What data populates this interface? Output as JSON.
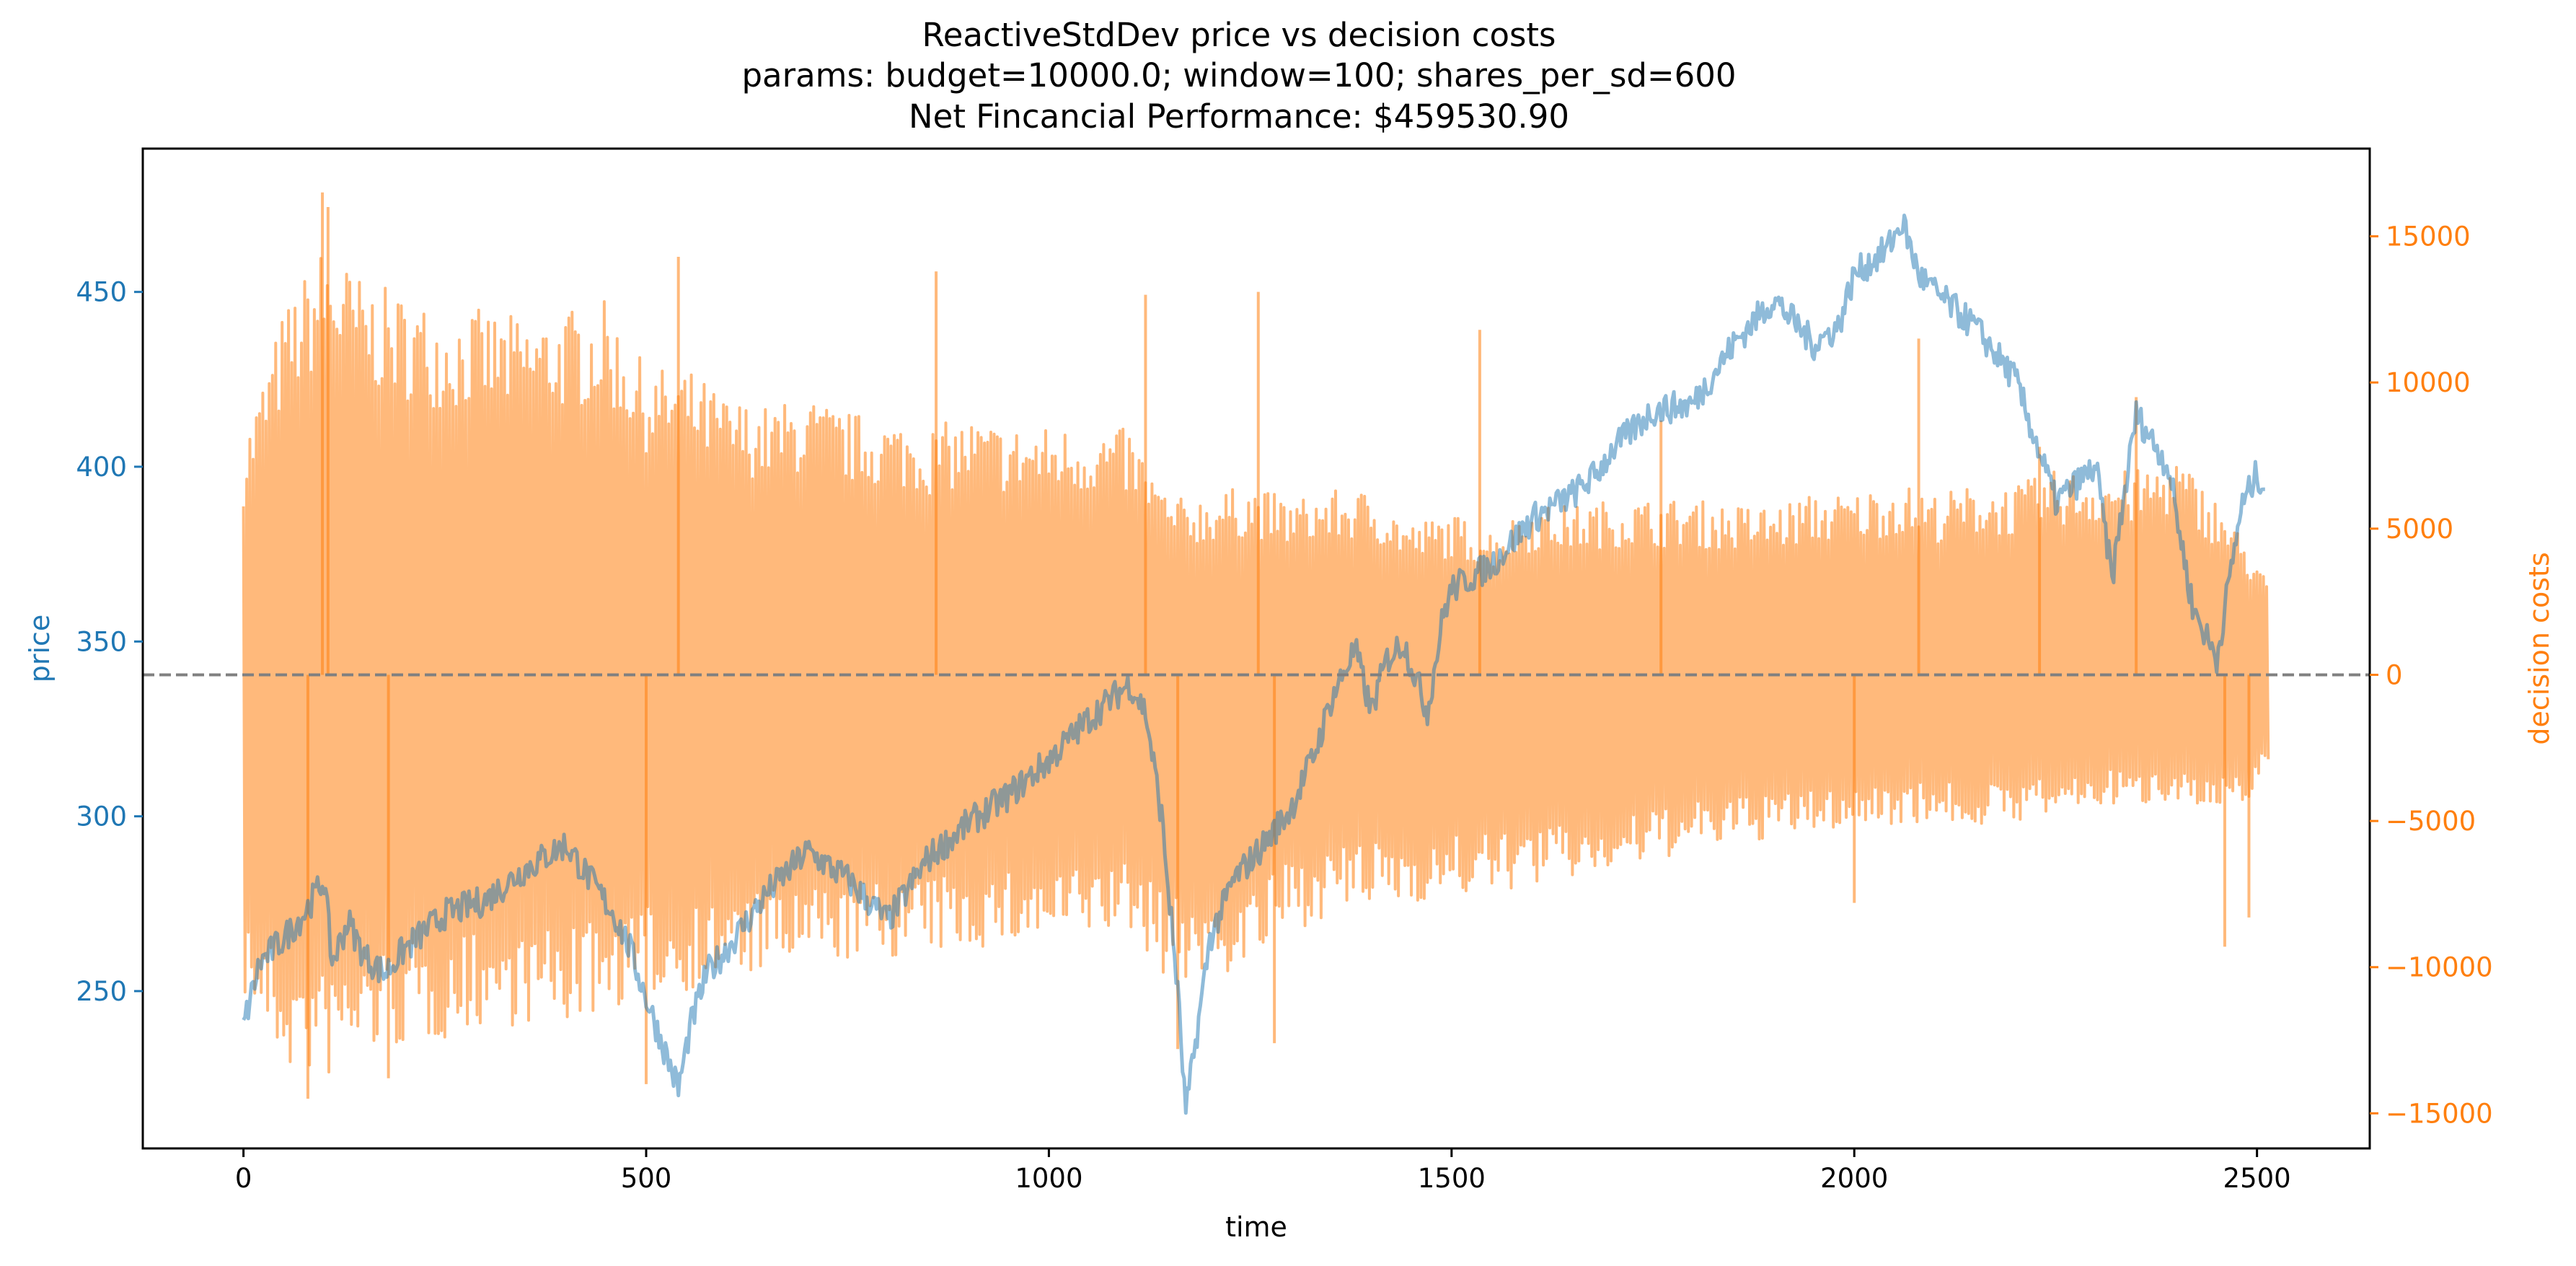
{
  "chart_data": {
    "type": "line",
    "title_lines": [
      "ReactiveStdDev price vs decision costs",
      "params: budget=10000.0; window=100; shares_per_sd=600",
      "Net Fincancial Performance: $459530.90"
    ],
    "xlabel": "time",
    "ylabel_left": "price",
    "ylabel_right": "decision costs",
    "xlim": [
      -125,
      2640
    ],
    "ylim_left": [
      205,
      491
    ],
    "ylim_right": [
      -16200,
      18000
    ],
    "x_ticks": [
      0,
      500,
      1000,
      1500,
      2000,
      2500
    ],
    "x_tick_labels": [
      "0",
      "500",
      "1000",
      "1500",
      "2000",
      "2500"
    ],
    "left_ticks": [
      250,
      300,
      350,
      400,
      450
    ],
    "left_tick_labels": [
      "250",
      "300",
      "350",
      "400",
      "450"
    ],
    "right_ticks": [
      -15000,
      -10000,
      -5000,
      0,
      5000,
      10000,
      15000
    ],
    "right_tick_labels": [
      "−15000",
      "−10000",
      "−5000",
      "0",
      "5000",
      "10000",
      "15000"
    ],
    "reference_line": {
      "axis": "right",
      "y": 0,
      "style": "dashed",
      "color": "#808080"
    },
    "colors": {
      "price": "#1f77b4",
      "decision_costs": "#ff7f0e",
      "axis": "#000000"
    },
    "series": [
      {
        "axis": "left",
        "x": [
          0,
          20,
          50,
          75,
          100,
          110,
          130,
          150,
          175,
          200,
          250,
          300,
          350,
          400,
          430,
          460,
          480,
          500,
          520,
          540,
          555,
          575,
          600,
          650,
          700,
          750,
          800,
          850,
          900,
          950,
          1000,
          1050,
          1100,
          1120,
          1140,
          1160,
          1170,
          1185,
          1200,
          1230,
          1260,
          1300,
          1330,
          1350,
          1380,
          1400,
          1420,
          1440,
          1470,
          1490,
          1500,
          1550,
          1600,
          1650,
          1680,
          1700,
          1750,
          1800,
          1850,
          1900,
          1950,
          1980,
          2000,
          2040,
          2060,
          2080,
          2100,
          2150,
          2200,
          2250,
          2300,
          2320,
          2350,
          2390,
          2420,
          2450,
          2480,
          2500,
          2510
        ],
        "values": [
          240,
          258,
          265,
          272,
          282,
          258,
          270,
          260,
          255,
          262,
          272,
          276,
          285,
          292,
          282,
          272,
          262,
          248,
          235,
          222,
          240,
          255,
          262,
          278,
          290,
          282,
          270,
          288,
          298,
          306,
          316,
          328,
          338,
          330,
          300,
          250,
          215,
          240,
          265,
          282,
          290,
          302,
          318,
          333,
          348,
          330,
          345,
          350,
          330,
          358,
          365,
          372,
          385,
          392,
          398,
          405,
          416,
          418,
          435,
          448,
          435,
          440,
          455,
          462,
          470,
          455,
          450,
          440,
          425,
          390,
          400,
          368,
          415,
          400,
          360,
          345,
          388,
          398,
          394
        ]
      },
      {
        "axis": "right",
        "x": [
          0,
          50,
          100,
          150,
          200,
          250,
          300,
          350,
          400,
          450,
          500,
          550,
          600,
          650,
          700,
          750,
          800,
          850,
          900,
          950,
          1000,
          1050,
          1100,
          1150,
          1200,
          1250,
          1300,
          1350,
          1400,
          1450,
          1500,
          1550,
          1600,
          1650,
          1700,
          1750,
          1800,
          1850,
          1900,
          1950,
          2000,
          2050,
          2100,
          2150,
          2200,
          2250,
          2300,
          2350,
          2400,
          2450,
          2500,
          2515
        ],
        "upper": [
          8000,
          12500,
          14800,
          13500,
          13000,
          12500,
          12500,
          12200,
          12500,
          12800,
          10500,
          10500,
          9500,
          9200,
          9500,
          9000,
          8800,
          8500,
          8800,
          8500,
          8500,
          8500,
          8400,
          6000,
          6200,
          6500,
          6000,
          6300,
          6300,
          5200,
          5500,
          5000,
          5800,
          5800,
          6000,
          6000,
          6000,
          5800,
          5800,
          6200,
          6200,
          6600,
          6200,
          6500,
          6500,
          7000,
          7000,
          7000,
          7500,
          6000,
          4000,
          3000
        ],
        "lower": [
          -11000,
          -13500,
          -14000,
          -13000,
          -12800,
          -12500,
          -12000,
          -12000,
          -12000,
          -11500,
          -11000,
          -10800,
          -10500,
          -10200,
          -10000,
          -9800,
          -9700,
          -9600,
          -9400,
          -9300,
          -9200,
          -9000,
          -8800,
          -10500,
          -10500,
          -10000,
          -8800,
          -8200,
          -8000,
          -7800,
          -7600,
          -7500,
          -7200,
          -7000,
          -6800,
          -6400,
          -6000,
          -5800,
          -5600,
          -5400,
          -5200,
          -5100,
          -5000,
          -5200,
          -5000,
          -4800,
          -4500,
          -4500,
          -4200,
          -5000,
          -4000,
          -3000
        ],
        "spikes": [
          {
            "x": 98,
            "y": 16500
          },
          {
            "x": 105,
            "y": 16000
          },
          {
            "x": 540,
            "y": 14300
          },
          {
            "x": 860,
            "y": 13800
          },
          {
            "x": 1120,
            "y": 13000
          },
          {
            "x": 1260,
            "y": 13100
          },
          {
            "x": 1535,
            "y": 11800
          },
          {
            "x": 2080,
            "y": 11500
          },
          {
            "x": 2230,
            "y": 7800
          },
          {
            "x": 2350,
            "y": 9500
          },
          {
            "x": 1760,
            "y": 8700
          },
          {
            "x": 80,
            "y": -14500
          },
          {
            "x": 180,
            "y": -13800
          },
          {
            "x": 500,
            "y": -14000
          },
          {
            "x": 1160,
            "y": -12800
          },
          {
            "x": 1280,
            "y": -12600
          },
          {
            "x": 2000,
            "y": -7800
          },
          {
            "x": 2460,
            "y": -9300
          },
          {
            "x": 2490,
            "y": -8300
          }
        ]
      }
    ]
  }
}
